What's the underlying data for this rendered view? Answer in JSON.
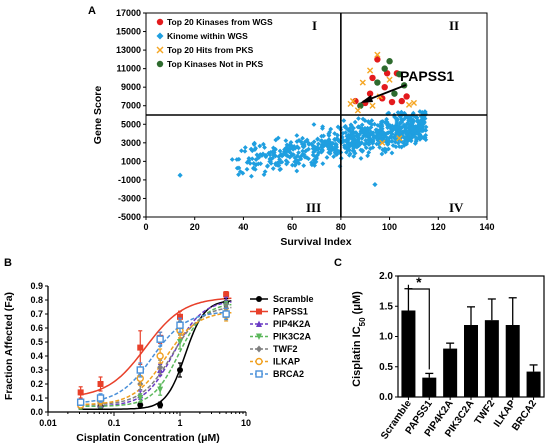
{
  "panels": {
    "a": "A",
    "b": "B",
    "c": "C"
  },
  "chart_data": [
    {
      "type": "scatter",
      "xlabel": "Survival Index",
      "ylabel": "Gene Score",
      "xlim": [
        0,
        140
      ],
      "ylim": [
        -5000,
        17000
      ],
      "x_ticks": [
        "0",
        "20",
        "40",
        "60",
        "80",
        "100",
        "120",
        "140"
      ],
      "y_ticks": [
        "17000",
        "15000",
        "13000",
        "11000",
        "9000",
        "7000",
        "5000",
        "3000",
        "1000",
        "-1000",
        "-3000",
        "-5000"
      ],
      "x_divider": 80,
      "y_divider": 6000,
      "quadrant_labels": {
        "q1": "I",
        "q2": "II",
        "q3": "III",
        "q4": "IV"
      },
      "annotation": {
        "text": "PAPSS1",
        "x": 96,
        "y": 6800
      },
      "legend": [
        {
          "name": "Top 20 Kinases from WGS",
          "marker": "circle",
          "color": "#e31a1c"
        },
        {
          "name": "Kinome within WGS",
          "marker": "diamond",
          "color": "#1f9fe0"
        },
        {
          "name": "Top 20 Hits from PKS",
          "marker": "x",
          "color": "#f5a623"
        },
        {
          "name": "Top Kinases Not in PKS",
          "marker": "circle",
          "color": "#2e6b2e"
        }
      ],
      "series": [
        {
          "name": "Top 20 Kinases from WGS",
          "color": "#e31a1c",
          "points": [
            [
              95,
              12000
            ],
            [
              99,
              10500
            ],
            [
              93,
              10000
            ],
            [
              103,
              10500
            ],
            [
              98,
              9000
            ],
            [
              86,
              7500
            ],
            [
              90,
              7300
            ],
            [
              97,
              7800
            ],
            [
              101,
              7400
            ],
            [
              105,
              7500
            ],
            [
              92,
              8300
            ],
            [
              107,
              8000
            ]
          ]
        },
        {
          "name": "Top Kinases Not in PKS",
          "color": "#2e6b2e",
          "points": [
            [
              100,
              11800
            ],
            [
              104,
              10400
            ],
            [
              98,
              11000
            ],
            [
              95,
              9500
            ],
            [
              102,
              8300
            ],
            [
              88,
              7000
            ],
            [
              106,
              9200
            ]
          ]
        },
        {
          "name": "Top 20 Hits from PKS",
          "color": "#f5a623",
          "points": [
            [
              95,
              12500
            ],
            [
              92,
              10800
            ],
            [
              89,
              9500
            ],
            [
              100,
              9800
            ],
            [
              96,
              8000
            ],
            [
              84,
              7200
            ],
            [
              110,
              7300
            ],
            [
              93,
              7000
            ],
            [
              85,
              7500
            ],
            [
              87,
              6500
            ],
            [
              104,
              3500
            ],
            [
              97,
              3000
            ],
            [
              108,
              7100
            ]
          ]
        },
        {
          "name": "Kinome within WGS",
          "color": "#1f9fe0",
          "points": [
            [
              14,
              -500
            ],
            [
              94,
              -1500
            ]
          ]
        }
      ]
    },
    {
      "type": "line",
      "xlabel": "Cisplatin Concentration (μM)",
      "ylabel": "Fraction Affected (Fa)",
      "x_scale": "log",
      "xlim": [
        0.01,
        10
      ],
      "ylim": [
        0,
        0.9
      ],
      "x_ticks": [
        "0.01",
        "0.1",
        "1",
        "10"
      ],
      "y_ticks": [
        "0.0",
        "0.1",
        "0.2",
        "0.3",
        "0.4",
        "0.5",
        "0.6",
        "0.7",
        "0.8",
        "0.9"
      ],
      "x": [
        0.03125,
        0.0625,
        0.25,
        0.5,
        1,
        5
      ],
      "series": [
        {
          "name": "Scramble",
          "color": "#000000",
          "marker": "circle",
          "values": [
            0.04,
            0.04,
            0.05,
            0.05,
            0.3,
            0.78
          ],
          "err": [
            0.02,
            0.02,
            0.02,
            0.02,
            0.05,
            0.03
          ],
          "fit": [
            0.02,
            1.2,
            0.8,
            3.0
          ]
        },
        {
          "name": "PAPSS1",
          "color": "#e8402a",
          "marker": "square",
          "values": [
            0.14,
            0.2,
            0.46,
            0.53,
            0.68,
            0.84
          ],
          "err": [
            0.04,
            0.05,
            0.12,
            0.04,
            0.04,
            0.02
          ],
          "fit": [
            0.1,
            0.3,
            0.82,
            1.5
          ]
        },
        {
          "name": "PIP4K2A",
          "color": "#6a3bc4",
          "marker": "triangle",
          "values": [
            0.05,
            0.05,
            0.12,
            0.3,
            0.62,
            0.79
          ],
          "err": [
            0.02,
            0.02,
            0.03,
            0.04,
            0.05,
            0.03
          ],
          "fit": [
            0.04,
            0.8,
            0.8,
            2.0
          ]
        },
        {
          "name": "PIK3C2A",
          "color": "#5cb85c",
          "marker": "tri-down",
          "values": [
            0.04,
            0.05,
            0.1,
            0.16,
            0.5,
            0.76
          ],
          "err": [
            0.02,
            0.02,
            0.03,
            0.04,
            0.05,
            0.03
          ],
          "fit": [
            0.04,
            0.95,
            0.78,
            2.2
          ]
        },
        {
          "name": "TWF2",
          "color": "#7f7f7f",
          "marker": "diamond",
          "values": [
            0.06,
            0.06,
            0.2,
            0.32,
            0.6,
            0.74
          ],
          "err": [
            0.02,
            0.02,
            0.04,
            0.05,
            0.05,
            0.03
          ],
          "fit": [
            0.05,
            0.75,
            0.76,
            1.9
          ]
        },
        {
          "name": "ILKAP",
          "color": "#f0a020",
          "marker": "circle-open",
          "values": [
            0.05,
            0.08,
            0.24,
            0.4,
            0.58,
            0.69
          ],
          "err": [
            0.02,
            0.03,
            0.05,
            0.05,
            0.05,
            0.04
          ],
          "fit": [
            0.05,
            0.6,
            0.72,
            1.8
          ]
        },
        {
          "name": "BRCA2",
          "color": "#4a90d9",
          "marker": "square-open",
          "values": [
            0.07,
            0.1,
            0.3,
            0.52,
            0.62,
            0.7
          ],
          "err": [
            0.02,
            0.03,
            0.05,
            0.05,
            0.05,
            0.04
          ],
          "fit": [
            0.06,
            0.38,
            0.72,
            1.7
          ]
        }
      ]
    },
    {
      "type": "bar",
      "ylabel": "Cisplatin IC50 (μM)",
      "ylabel_main": "Cisplatin IC",
      "ylabel_sub": "50",
      "ylabel_unit": " (μM)",
      "ylim": [
        0,
        2.0
      ],
      "y_ticks": [
        "0.0",
        "0.5",
        "1.0",
        "1.5",
        "2.0"
      ],
      "categories": [
        "Scramble",
        "PAPSS1",
        "PIP4K2A",
        "PIK3C2A",
        "TWF2",
        "ILKAP",
        "BRCA2"
      ],
      "values": [
        1.43,
        0.32,
        0.8,
        1.19,
        1.27,
        1.19,
        0.42
      ],
      "err": [
        0.36,
        0.07,
        0.09,
        0.3,
        0.35,
        0.45,
        0.11
      ],
      "significance": {
        "label": "*",
        "between": [
          "Scramble",
          "PAPSS1"
        ]
      }
    }
  ]
}
